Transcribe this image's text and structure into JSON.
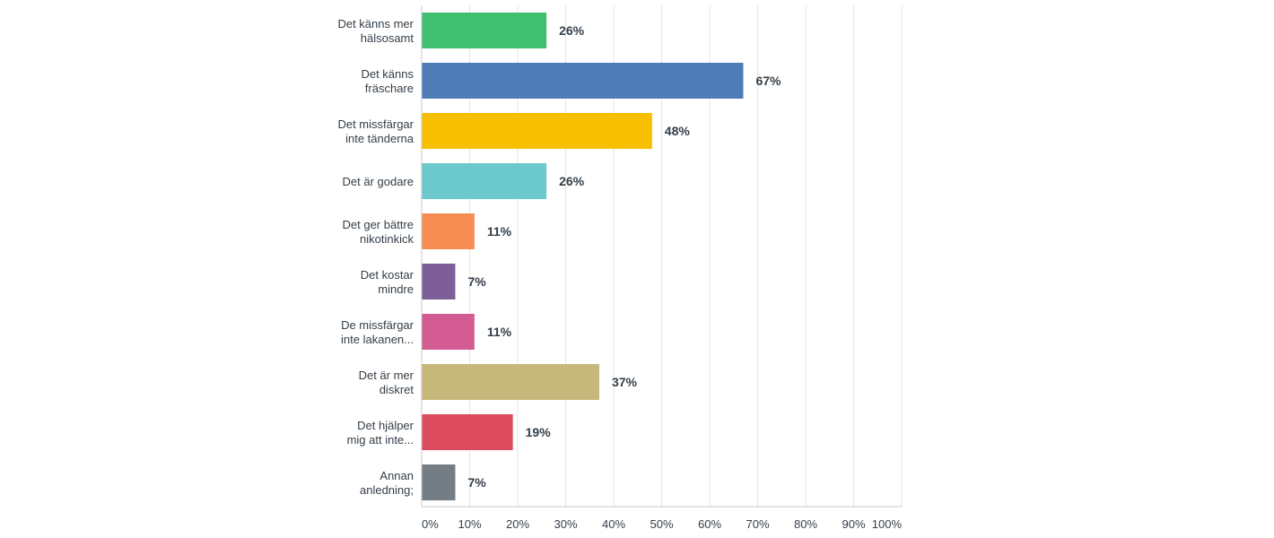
{
  "chart_data": {
    "type": "bar",
    "orientation": "horizontal",
    "categories": [
      [
        "Det känns mer",
        "hälsosamt"
      ],
      [
        "Det känns",
        "fräschare"
      ],
      [
        "Det missfärgar",
        "inte tänderna"
      ],
      [
        "Det är godare"
      ],
      [
        "Det ger bättre",
        "nikotinkick"
      ],
      [
        "Det kostar",
        "mindre"
      ],
      [
        "De missfärgar",
        "inte lakanen..."
      ],
      [
        "Det är mer",
        "diskret"
      ],
      [
        "Det hjälper",
        "mig att inte..."
      ],
      [
        "Annan",
        "anledning;"
      ]
    ],
    "values": [
      26,
      67,
      48,
      26,
      11,
      7,
      11,
      37,
      19,
      7
    ],
    "value_labels": [
      "26%",
      "67%",
      "48%",
      "26%",
      "11%",
      "7%",
      "11%",
      "37%",
      "19%",
      "7%"
    ],
    "colors": [
      "#3fbf6f",
      "#4f7bb7",
      "#f6c000",
      "#6bc8cc",
      "#f78c52",
      "#7e5e97",
      "#d25c91",
      "#c6b77b",
      "#dd4b5e",
      "#737d83"
    ],
    "xlim": [
      0,
      100
    ],
    "xticks": [
      "0%",
      "10%",
      "20%",
      "30%",
      "40%",
      "50%",
      "60%",
      "70%",
      "80%",
      "90%",
      "100%"
    ],
    "grid": true,
    "gridline_color": "#e5e5e5",
    "axis_color": "#c8c8c8"
  }
}
